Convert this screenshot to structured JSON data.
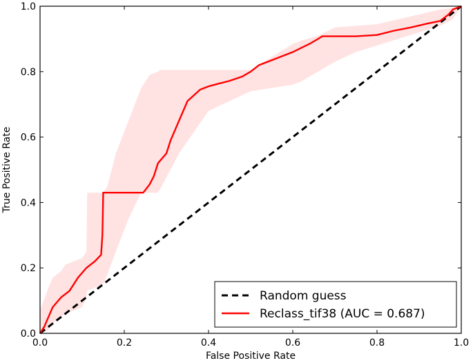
{
  "chart_data": {
    "type": "line",
    "title": "",
    "xlabel": "False Positive Rate",
    "ylabel": "True Positive Rate",
    "xlim": [
      0,
      1
    ],
    "ylim": [
      0,
      1
    ],
    "x_ticks": [
      "0.0",
      "0.2",
      "0.4",
      "0.6",
      "0.8",
      "1.0"
    ],
    "y_ticks": [
      "0.0",
      "0.2",
      "0.4",
      "0.6",
      "0.8",
      "1.0"
    ],
    "grid": false,
    "legend_position": "lower-right",
    "colors": {
      "roc": "#ff0000",
      "band": "#ffcccc",
      "random": "#000000"
    },
    "series": [
      {
        "name": "Random guess",
        "style": "dashed",
        "x": [
          0,
          1
        ],
        "y": [
          0,
          1
        ]
      },
      {
        "name": "Reclass_tif38 (AUC = 0.687)",
        "style": "solid",
        "x": [
          0.0,
          0.01,
          0.02,
          0.03,
          0.05,
          0.07,
          0.09,
          0.11,
          0.13,
          0.145,
          0.148,
          0.15,
          0.16,
          0.2,
          0.245,
          0.26,
          0.27,
          0.28,
          0.3,
          0.31,
          0.33,
          0.35,
          0.38,
          0.4,
          0.42,
          0.45,
          0.48,
          0.5,
          0.52,
          0.55,
          0.6,
          0.64,
          0.66,
          0.67,
          0.7,
          0.75,
          0.8,
          0.84,
          0.88,
          0.92,
          0.95,
          0.97,
          0.98,
          1.0
        ],
        "y": [
          0.0,
          0.02,
          0.05,
          0.08,
          0.11,
          0.13,
          0.17,
          0.2,
          0.22,
          0.24,
          0.3,
          0.43,
          0.43,
          0.43,
          0.43,
          0.455,
          0.48,
          0.52,
          0.55,
          0.59,
          0.65,
          0.71,
          0.745,
          0.755,
          0.762,
          0.772,
          0.785,
          0.8,
          0.82,
          0.835,
          0.86,
          0.885,
          0.9,
          0.908,
          0.908,
          0.908,
          0.912,
          0.925,
          0.935,
          0.947,
          0.955,
          0.975,
          0.99,
          1.0
        ]
      }
    ],
    "confidence_band": {
      "x": [
        0.0,
        0.02,
        0.03,
        0.05,
        0.06,
        0.1,
        0.11,
        0.112,
        0.15,
        0.16,
        0.18,
        0.21,
        0.24,
        0.26,
        0.28,
        0.285,
        0.33,
        0.4,
        0.5,
        0.6,
        0.62,
        0.66,
        0.7,
        0.75,
        0.8,
        0.85,
        0.9,
        0.95,
        0.98,
        1.0
      ],
      "y_upper": [
        0.07,
        0.14,
        0.17,
        0.19,
        0.21,
        0.23,
        0.25,
        0.43,
        0.43,
        0.45,
        0.55,
        0.65,
        0.75,
        0.79,
        0.8,
        0.805,
        0.805,
        0.805,
        0.805,
        0.885,
        0.895,
        0.91,
        0.935,
        0.94,
        0.945,
        0.96,
        0.975,
        0.99,
        0.995,
        1.0
      ],
      "y_lower": [
        0.0,
        0.01,
        0.03,
        0.05,
        0.06,
        0.08,
        0.11,
        0.13,
        0.15,
        0.18,
        0.25,
        0.35,
        0.43,
        0.43,
        0.43,
        0.44,
        0.55,
        0.68,
        0.74,
        0.76,
        0.77,
        0.8,
        0.83,
        0.86,
        0.88,
        0.9,
        0.92,
        0.94,
        0.96,
        1.0
      ]
    }
  }
}
